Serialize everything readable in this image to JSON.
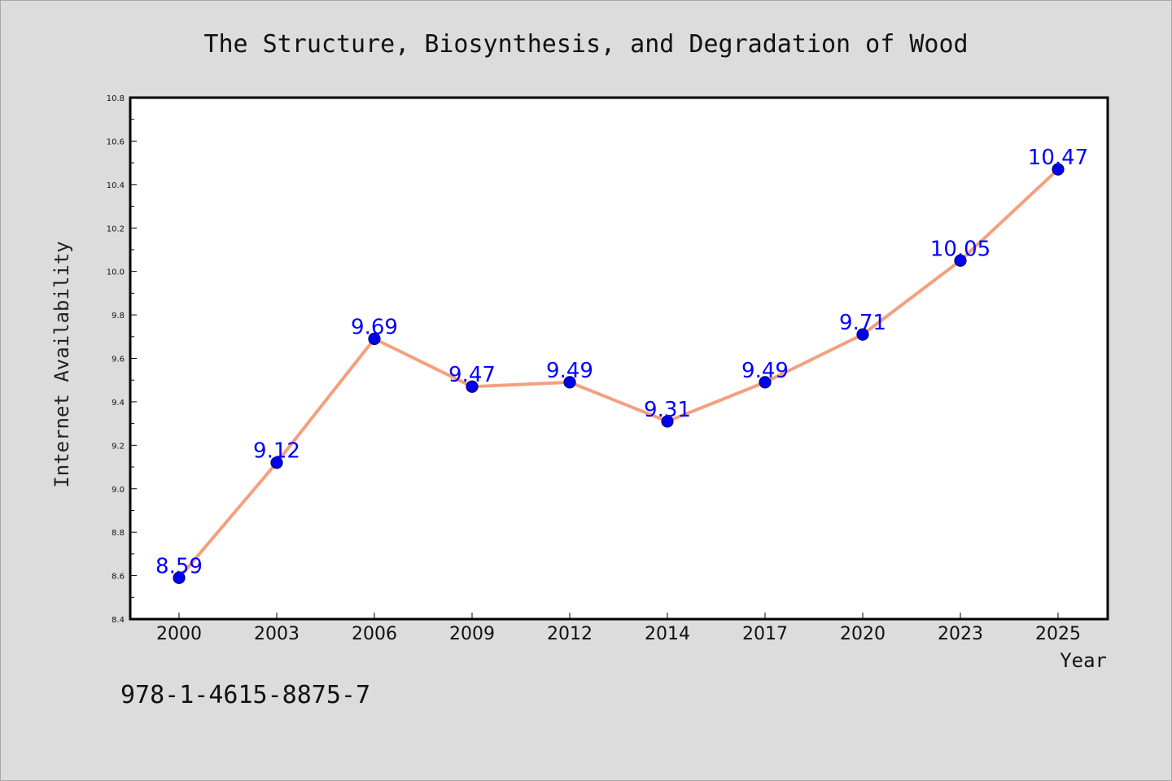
{
  "chart_data": {
    "type": "line",
    "title": "The Structure, Biosynthesis, and Degradation of Wood",
    "xlabel": "Year",
    "ylabel": "Internet Availability",
    "categories": [
      "2000",
      "2003",
      "2006",
      "2009",
      "2012",
      "2014",
      "2017",
      "2020",
      "2023",
      "2025"
    ],
    "series": [
      {
        "values": [
          8.59,
          9.12,
          9.69,
          9.47,
          9.49,
          9.31,
          9.49,
          9.71,
          10.05,
          10.47
        ]
      }
    ],
    "data_labels": [
      "8.59",
      "9.12",
      "9.69",
      "9.47",
      "9.49",
      "9.31",
      "9.49",
      "9.71",
      "10.05",
      "10.47"
    ],
    "ylim": [
      8.4,
      10.8
    ],
    "yticks": [
      "8.4",
      "8.6",
      "8.8",
      "9.0",
      "9.2",
      "9.4",
      "9.6",
      "9.8",
      "10.0",
      "10.2",
      "10.4",
      "10.6",
      "10.8"
    ],
    "grid": false,
    "legend": "none",
    "colors": {
      "line": "#f4a07e",
      "marker": "#0000ee",
      "marker_edge": "#000080",
      "data_label": "#0000ff",
      "plot_bg": "#ffffff",
      "page_bg": "#dcdcdc"
    }
  },
  "footnote": "978-1-4615-8875-7"
}
